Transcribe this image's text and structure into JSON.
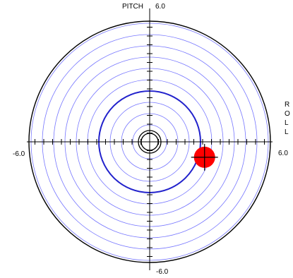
{
  "axes": {
    "pitch_label": "PITCH",
    "roll_label_letters": [
      "R",
      "O",
      "L",
      "L"
    ],
    "pitch_max_label": "6.0",
    "pitch_min_label": "-6.0",
    "roll_min_label": "-6.0",
    "roll_max_label": "6.0",
    "range": [
      -6.0,
      6.0
    ]
  },
  "indicator": {
    "roll": 2.2,
    "pitch": -0.9,
    "color": "#ff0000"
  },
  "rings": {
    "count": 10,
    "color": "#7777ff",
    "highlight_ring": 4,
    "highlight_color": "#2222cc",
    "outer_color": "#000000"
  },
  "icons": {
    "bubble": "crosshair-bubble-icon"
  }
}
